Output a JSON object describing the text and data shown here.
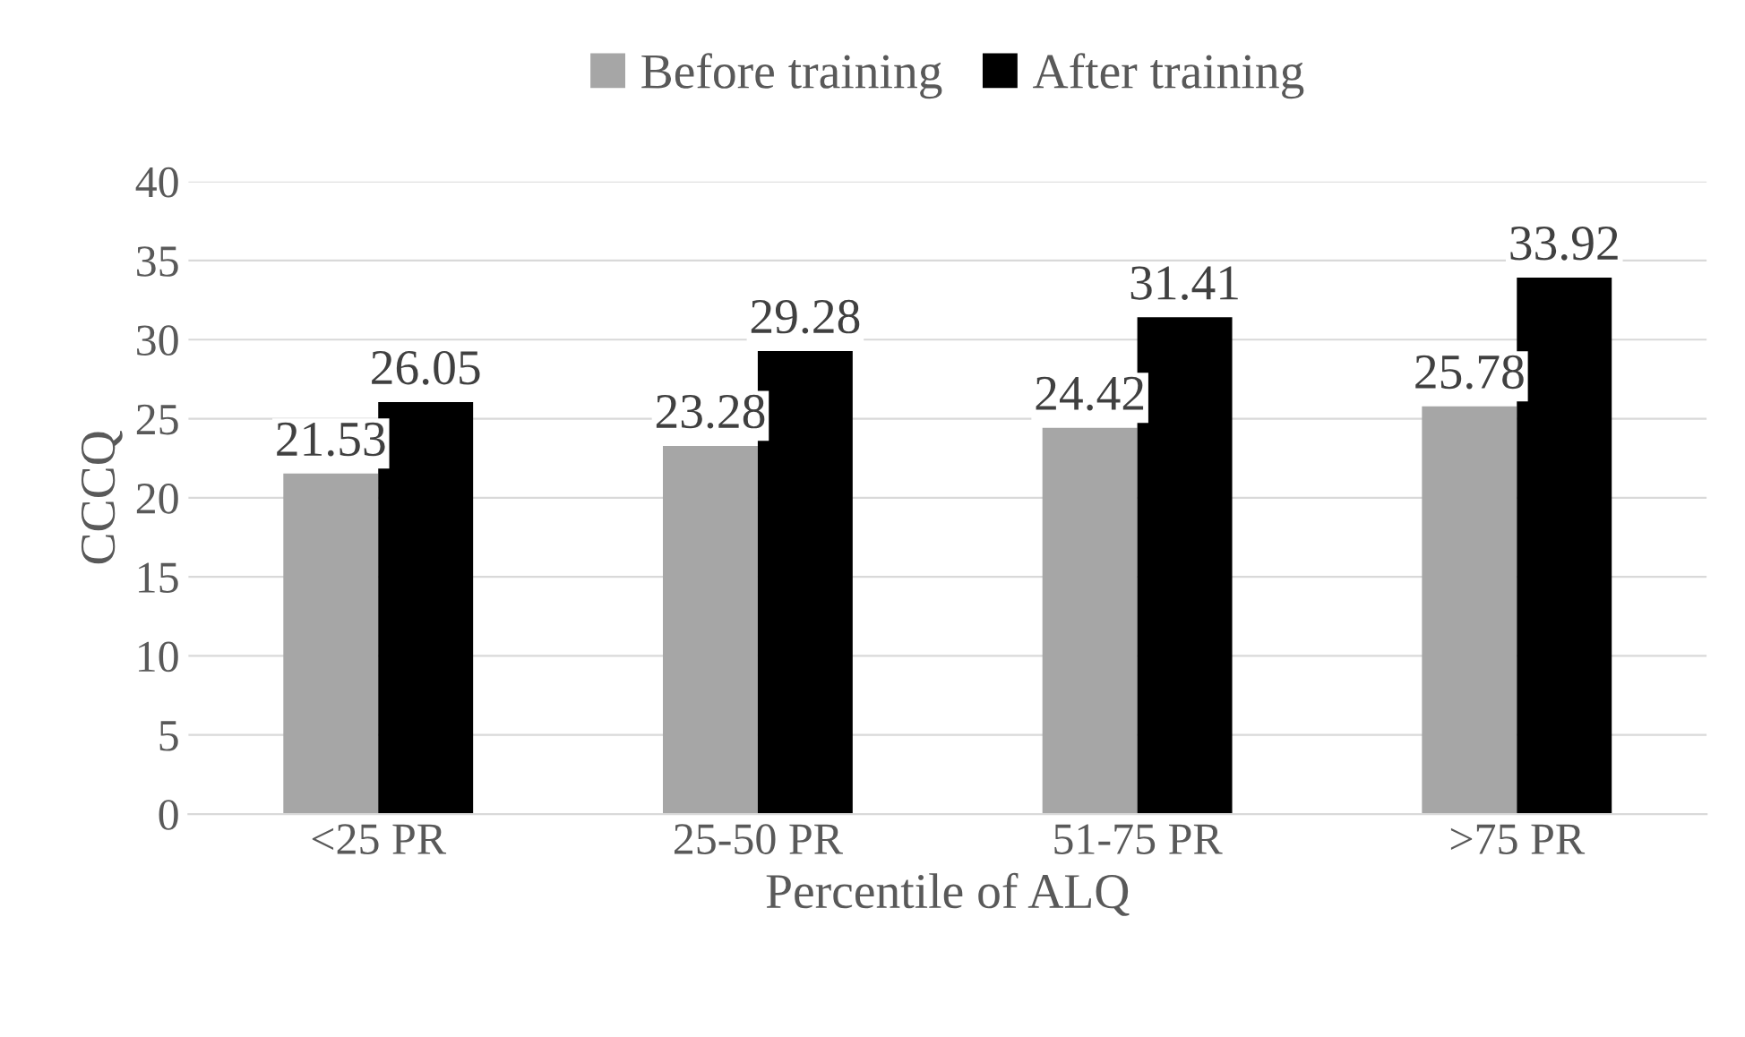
{
  "chart_data": {
    "type": "bar",
    "xlabel": "Percentile of ALQ",
    "ylabel": "CCCQ",
    "categories": [
      "<25 PR",
      "25-50 PR",
      "51-75 PR",
      ">75 PR"
    ],
    "series": [
      {
        "name": "Before training",
        "color": "#a6a6a6",
        "values": [
          21.53,
          23.28,
          24.42,
          25.78
        ]
      },
      {
        "name": "After training",
        "color": "#000000",
        "values": [
          26.05,
          29.28,
          31.41,
          33.92
        ]
      }
    ],
    "ylim": [
      0,
      40
    ],
    "yticks": [
      0,
      5,
      10,
      15,
      20,
      25,
      30,
      35,
      40
    ],
    "grid": "y",
    "legend": "top",
    "data_labels": true
  }
}
